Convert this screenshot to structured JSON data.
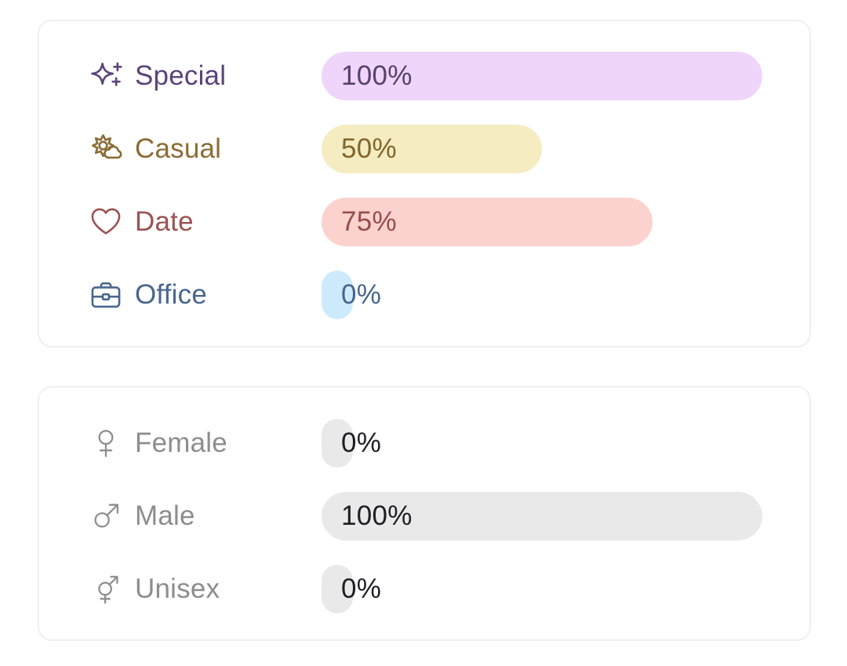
{
  "cards": [
    {
      "name": "occasion-stats-card",
      "rows": [
        {
          "label": "Special",
          "value": 100,
          "percent_label": "100%",
          "icon": "sparkles-icon",
          "label_color": "#5b4379",
          "bar_color": "#eed5f9",
          "value_color": "#56406f"
        },
        {
          "label": "Casual",
          "value": 50,
          "percent_label": "50%",
          "icon": "sun-cloud-icon",
          "label_color": "#8b6c34",
          "bar_color": "#f5ecc2",
          "value_color": "#82652c"
        },
        {
          "label": "Date",
          "value": 75,
          "percent_label": "75%",
          "icon": "heart-icon",
          "label_color": "#9b5353",
          "bar_color": "#fcd2ce",
          "value_color": "#964c4c"
        },
        {
          "label": "Office",
          "value": 0,
          "percent_label": "0%",
          "icon": "briefcase-icon",
          "label_color": "#49678f",
          "bar_color": "#cdeafc",
          "value_color": "#45658e"
        }
      ]
    },
    {
      "name": "gender-stats-card",
      "rows": [
        {
          "label": "Female",
          "value": 0,
          "percent_label": "0%",
          "icon": "female-icon",
          "label_color": "#8d8d8d",
          "bar_color": "#e9e9e9",
          "value_color": "#1f1f23"
        },
        {
          "label": "Male",
          "value": 100,
          "percent_label": "100%",
          "icon": "male-icon",
          "label_color": "#8d8d8d",
          "bar_color": "#e9e9e9",
          "value_color": "#1f1f23"
        },
        {
          "label": "Unisex",
          "value": 0,
          "percent_label": "0%",
          "icon": "unisex-icon",
          "label_color": "#8d8d8d",
          "bar_color": "#e9e9e9",
          "value_color": "#1f1f23"
        }
      ]
    }
  ],
  "chart_data": [
    {
      "type": "bar",
      "orientation": "horizontal",
      "categories": [
        "Special",
        "Casual",
        "Date",
        "Office"
      ],
      "values": [
        100,
        50,
        75,
        0
      ],
      "unit": "%",
      "xlim": [
        0,
        100
      ],
      "title": "",
      "legend": false
    },
    {
      "type": "bar",
      "orientation": "horizontal",
      "categories": [
        "Female",
        "Male",
        "Unisex"
      ],
      "values": [
        0,
        100,
        0
      ],
      "unit": "%",
      "xlim": [
        0,
        100
      ],
      "title": "",
      "legend": false
    }
  ]
}
